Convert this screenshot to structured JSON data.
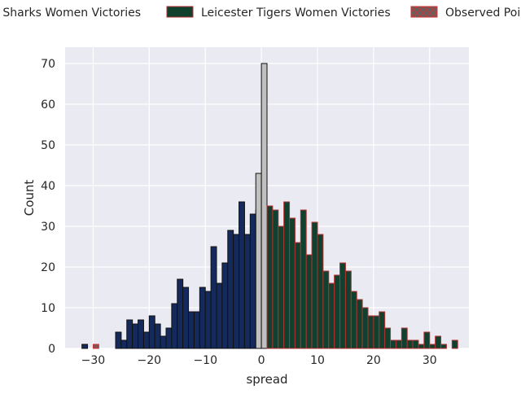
{
  "chart_data": {
    "type": "bar",
    "xlabel": "spread",
    "ylabel": "Count",
    "xlim": [
      -35,
      37
    ],
    "ylim": [
      0,
      74
    ],
    "x_ticks": [
      -30,
      -20,
      -10,
      0,
      10,
      20,
      30
    ],
    "y_ticks": [
      0,
      10,
      20,
      30,
      40,
      50,
      60,
      70
    ],
    "grid": true,
    "legend_position": "top",
    "bin_width": 1,
    "series": [
      {
        "name": "Sale Sharks Women Victories",
        "color": "#152a5c",
        "edge": "#111111",
        "x": [
          -32,
          -27,
          -26,
          -25,
          -24,
          -23,
          -22,
          -21,
          -20,
          -19,
          -18,
          -17,
          -16,
          -15,
          -14,
          -13,
          -12,
          -11,
          -10,
          -9,
          -8,
          -7,
          -6,
          -5,
          -4,
          -3,
          -2,
          -1
        ],
        "values": [
          1,
          0,
          4,
          2,
          7,
          6,
          7,
          4,
          8,
          6,
          3,
          5,
          11,
          17,
          15,
          9,
          9,
          15,
          14,
          25,
          16,
          21,
          29,
          28,
          36,
          28,
          33,
          34
        ]
      },
      {
        "name": "Observed Points",
        "color": "#6b5e5e",
        "edge": "#cc3333",
        "x": [
          -30
        ],
        "values": [
          1
        ]
      },
      {
        "name": "",
        "color": "#c0c0c0",
        "edge": "#111111",
        "x": [
          -1,
          0
        ],
        "values": [
          43,
          70
        ]
      },
      {
        "name": "Leicester Tigers Women Victories",
        "color": "#12402e",
        "edge": "#b03030",
        "x": [
          1,
          2,
          3,
          4,
          5,
          6,
          7,
          8,
          9,
          10,
          11,
          12,
          13,
          14,
          15,
          16,
          17,
          18,
          19,
          20,
          21,
          22,
          23,
          24,
          25,
          26,
          27,
          28,
          29,
          30,
          31,
          32,
          34
        ],
        "values": [
          35,
          34,
          30,
          36,
          32,
          26,
          34,
          23,
          31,
          28,
          19,
          16,
          18,
          21,
          19,
          14,
          12,
          10,
          8,
          8,
          9,
          5,
          2,
          2,
          5,
          2,
          2,
          1,
          4,
          1,
          3,
          1,
          2
        ]
      }
    ],
    "legend": [
      {
        "label": "Sale Sharks Women Victories",
        "color": "#152a5c",
        "edge": "#111111",
        "hatch": false
      },
      {
        "label": "Leicester Tigers Women Victories",
        "color": "#12402e",
        "edge": "#b03030",
        "hatch": false
      },
      {
        "label": "Observed Points",
        "color": "#6b5e5e",
        "edge": "#cc3333",
        "hatch": true
      }
    ]
  }
}
